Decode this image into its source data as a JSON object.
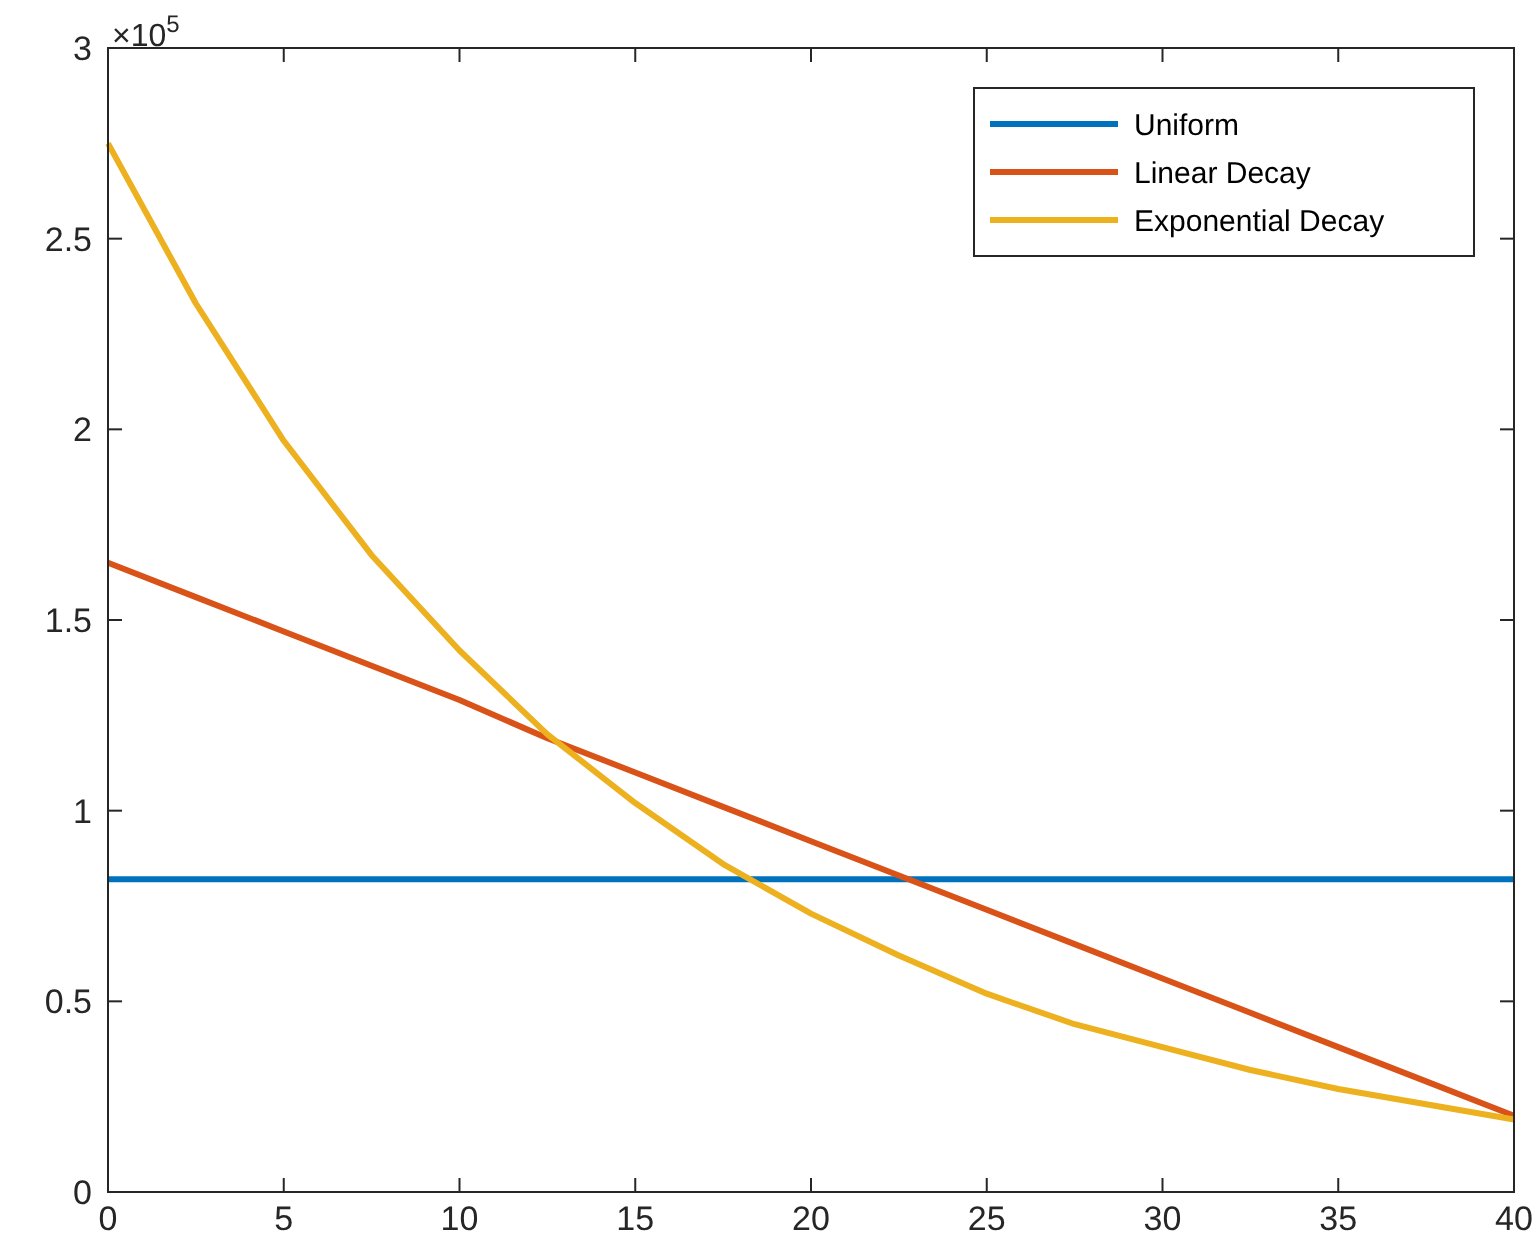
{
  "chart_data": {
    "type": "line",
    "x": [
      0,
      2.5,
      5,
      7.5,
      10,
      12.5,
      15,
      17.5,
      20,
      22.5,
      25,
      27.5,
      30,
      32.5,
      35,
      37.5,
      40
    ],
    "series": [
      {
        "name": "Uniform",
        "color": "#0072bd",
        "values": [
          0.82,
          0.82,
          0.82,
          0.82,
          0.82,
          0.82,
          0.82,
          0.82,
          0.82,
          0.82,
          0.82,
          0.82,
          0.82,
          0.82,
          0.82,
          0.82,
          0.82
        ]
      },
      {
        "name": "Linear Decay",
        "color": "#d95319",
        "values": [
          1.65,
          1.56,
          1.47,
          1.38,
          1.29,
          1.19,
          1.1,
          1.01,
          0.92,
          0.83,
          0.74,
          0.65,
          0.56,
          0.47,
          0.38,
          0.29,
          0.2
        ]
      },
      {
        "name": "Exponential Decay",
        "color": "#edb120",
        "values": [
          2.75,
          2.33,
          1.97,
          1.67,
          1.42,
          1.2,
          1.02,
          0.86,
          0.73,
          0.62,
          0.52,
          0.44,
          0.38,
          0.32,
          0.27,
          0.23,
          0.19
        ]
      }
    ],
    "xlim": [
      0,
      40
    ],
    "xticks": [
      0,
      5,
      10,
      15,
      20,
      25,
      30,
      35,
      40
    ],
    "ylim": [
      0,
      3
    ],
    "yticks": [
      0,
      0.5,
      1,
      1.5,
      2,
      2.5,
      3
    ],
    "annotations": [
      "×10$^{5}$"
    ],
    "legend": "top right",
    "grid": false,
    "marker": "none",
    "line_style": "solid"
  }
}
